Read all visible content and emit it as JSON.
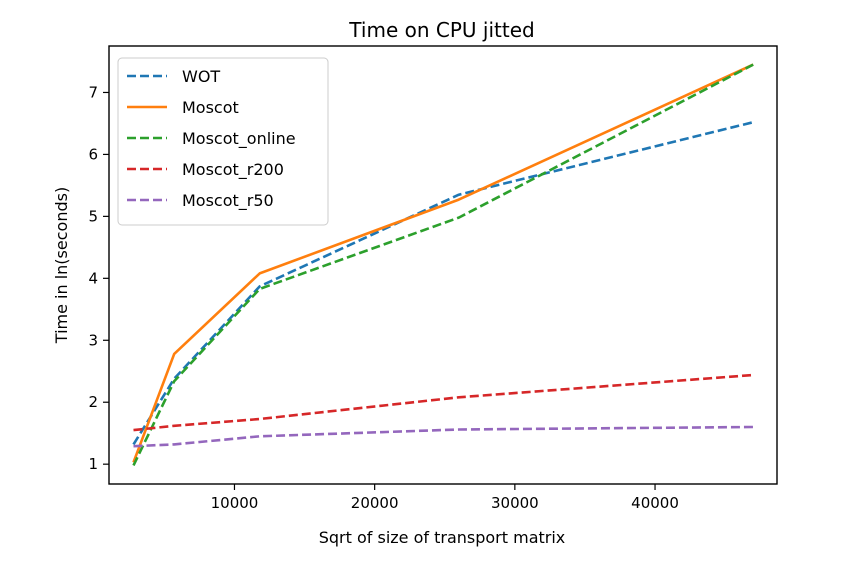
{
  "chart_data": {
    "type": "line",
    "title": "Time on CPU jitted",
    "xlabel": "Sqrt of size of transport matrix",
    "ylabel": "Time in ln(seconds)",
    "xlim": [
      1050,
      48700
    ],
    "ylim": [
      0.68,
      7.75
    ],
    "xticks": [
      10000,
      20000,
      30000,
      40000
    ],
    "xtick_labels": [
      "10000",
      "20000",
      "30000",
      "40000"
    ],
    "yticks": [
      1,
      2,
      3,
      4,
      5,
      6,
      7
    ],
    "ytick_labels": [
      "1",
      "2",
      "3",
      "4",
      "5",
      "6",
      "7"
    ],
    "grid": false,
    "legend_position": "top-left",
    "x": [
      2800,
      5700,
      11800,
      26000,
      47000
    ],
    "series": [
      {
        "name": "WOT",
        "values": [
          1.32,
          2.38,
          3.87,
          5.35,
          6.52
        ],
        "color": "#1f77b4",
        "style": "dashed"
      },
      {
        "name": "Moscot",
        "values": [
          1.03,
          2.78,
          4.08,
          5.27,
          7.45
        ],
        "color": "#ff7f0e",
        "style": "solid"
      },
      {
        "name": "Moscot_online",
        "values": [
          0.98,
          2.34,
          3.83,
          4.98,
          7.45
        ],
        "color": "#2ca02c",
        "style": "dashed"
      },
      {
        "name": "Moscot_r200",
        "values": [
          1.55,
          1.62,
          1.73,
          2.08,
          2.44
        ],
        "color": "#d62728",
        "style": "dashed"
      },
      {
        "name": "Moscot_r50",
        "values": [
          1.29,
          1.32,
          1.45,
          1.56,
          1.6
        ],
        "color": "#9467bd",
        "style": "dashed"
      }
    ]
  }
}
